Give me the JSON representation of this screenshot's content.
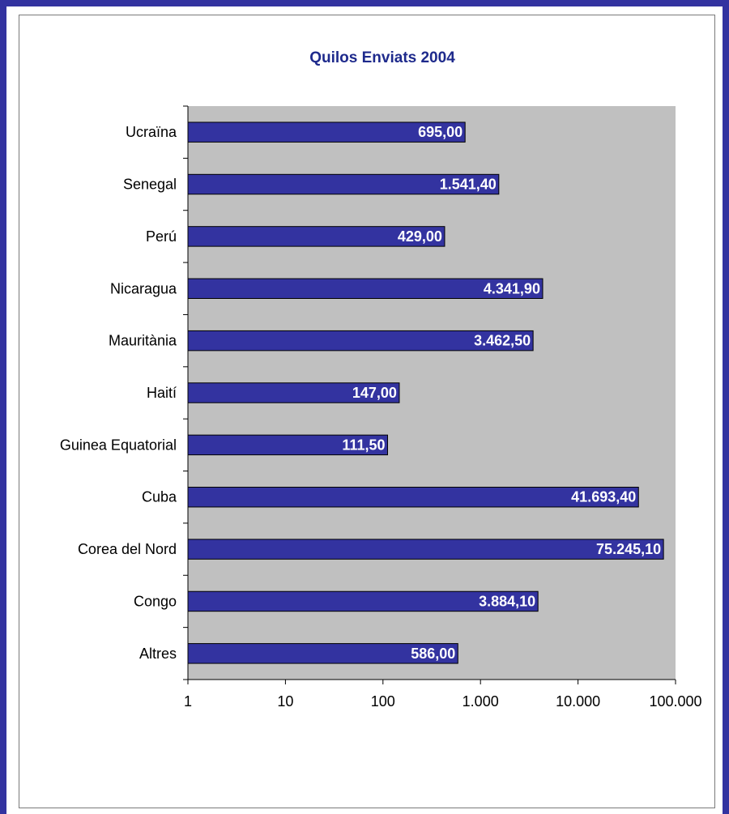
{
  "chart_data": {
    "type": "bar",
    "orientation": "horizontal",
    "title": "Quilos Enviats 2004",
    "xlabel": "",
    "ylabel": "",
    "x_scale": "log",
    "xlim": [
      1,
      100000
    ],
    "x_ticks": [
      "1",
      "10",
      "100",
      "1.000",
      "10.000",
      "100.000"
    ],
    "x_tick_values": [
      1,
      10,
      100,
      1000,
      10000,
      100000
    ],
    "grid": false,
    "legend": "none",
    "colors": {
      "bar": "#3333a0",
      "plot_bg": "#c0c0c0",
      "title": "#1e2a8c"
    },
    "categories": [
      "Ucraïna",
      "Senegal",
      "Perú",
      "Nicaragua",
      "Mauritània",
      "Haití",
      "Guinea Equatorial",
      "Cuba",
      "Corea del Nord",
      "Congo",
      "Altres"
    ],
    "values": [
      695.0,
      1541.4,
      429.0,
      4341.9,
      3462.5,
      147.0,
      111.5,
      41693.4,
      75245.1,
      3884.1,
      586.0
    ],
    "data_labels": [
      "695,00",
      "1.541,40",
      "429,00",
      "4.341,90",
      "3.462,50",
      "147,00",
      "111,50",
      "41.693,40",
      "75.245,10",
      "3.884,10",
      "586,00"
    ]
  }
}
